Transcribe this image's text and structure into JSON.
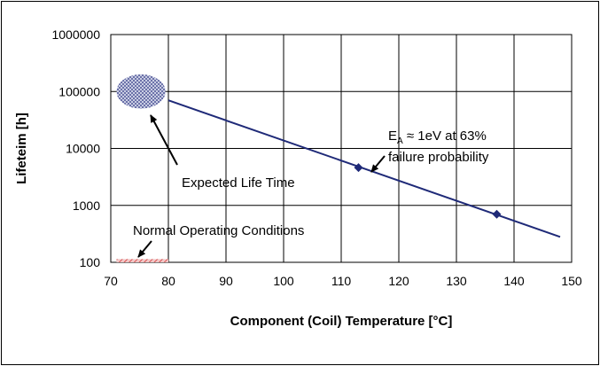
{
  "chart_data": {
    "type": "line",
    "xlabel": "Component (Coil) Temperature [°C]",
    "ylabel": "Lifeteim [h]",
    "xlim": [
      70,
      150
    ],
    "ylim": [
      100,
      1000000
    ],
    "yscale": "log",
    "grid": true,
    "x_ticks": [
      "70",
      "80",
      "90",
      "100",
      "110",
      "120",
      "130",
      "140",
      "150"
    ],
    "y_ticks": [
      "100",
      "1000",
      "10000",
      "100000",
      "1000000"
    ],
    "series": [
      {
        "color": "#1f2a78",
        "x": [
          80,
          148
        ],
        "y": [
          70000,
          280
        ]
      }
    ],
    "markers": [
      {
        "x": 113,
        "y": 4600
      },
      {
        "x": 137,
        "y": 700
      }
    ],
    "annotations": {
      "expected_life": "Expected Life Time",
      "normal_conditions": "Normal Operating Conditions",
      "ea_prefix": "E",
      "ea_sub": "A",
      "ea_rest": " ≈ 1eV at 63%",
      "ea_line2": "failure probability"
    },
    "regions": {
      "expected_life_ellipse": {
        "x": [
          71,
          79.5
        ],
        "y": [
          50000,
          200000
        ]
      },
      "normal_operating_range": {
        "x": [
          71,
          80
        ],
        "y": [
          100,
          110
        ]
      }
    }
  }
}
